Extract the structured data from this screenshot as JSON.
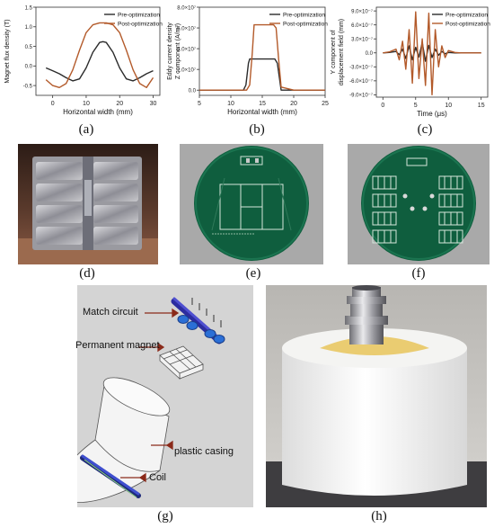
{
  "panels": {
    "a": {
      "caption": "(a)"
    },
    "b": {
      "caption": "(b)"
    },
    "c": {
      "caption": "(c)"
    },
    "d": {
      "caption": "(d)"
    },
    "e": {
      "caption": "(e)"
    },
    "f": {
      "caption": "(f)"
    },
    "g": {
      "caption": "(g)"
    },
    "h": {
      "caption": "(h)"
    }
  },
  "colors": {
    "pre": "#2b2b2b",
    "post": "#b35a2a"
  },
  "chart_data": [
    {
      "type": "line",
      "xlabel": "Horizontal width (mm)",
      "ylabel": "Magnet flux density (T)",
      "xlim": [
        -5,
        32
      ],
      "ylim": [
        -0.75,
        1.5
      ],
      "xticks": [
        "0",
        "10",
        "20",
        "30"
      ],
      "yticks": [
        "-0.5",
        "0.0",
        "0.5",
        "1.0",
        "1.5"
      ],
      "series": [
        {
          "name": "Pre-optimization",
          "x": [
            -2,
            0,
            2,
            4,
            6,
            8,
            10,
            12,
            14,
            15,
            16,
            18,
            20,
            22,
            24,
            26,
            28,
            30
          ],
          "values": [
            -0.05,
            -0.12,
            -0.2,
            -0.3,
            -0.38,
            -0.33,
            -0.05,
            0.35,
            0.6,
            0.62,
            0.6,
            0.35,
            -0.05,
            -0.33,
            -0.38,
            -0.3,
            -0.2,
            -0.12
          ]
        },
        {
          "name": "Post-optimization",
          "x": [
            -2,
            0,
            2,
            4,
            6,
            8,
            10,
            12,
            14,
            15,
            16,
            18,
            20,
            22,
            24,
            26,
            28,
            30
          ],
          "values": [
            -0.35,
            -0.5,
            -0.55,
            -0.45,
            -0.1,
            0.4,
            0.85,
            1.05,
            1.1,
            1.1,
            1.1,
            1.05,
            0.85,
            0.4,
            -0.1,
            -0.45,
            -0.55,
            -0.3
          ]
        }
      ]
    },
    {
      "type": "line",
      "xlabel": "Horizontal width (mm)",
      "ylabel": "Eddy current density",
      "ylabel2": "Z component (A/m²)",
      "xlim": [
        5,
        25
      ],
      "ylim": [
        -0.5,
        8.0
      ],
      "xticks": [
        "5",
        "10",
        "15",
        "20",
        "25"
      ],
      "yticks": [
        "0.0",
        "2.0×10⁷",
        "4.0×10⁷",
        "6.0×10⁷",
        "8.0×10⁷"
      ],
      "series": [
        {
          "name": "Pre-optimization",
          "x": [
            5,
            10,
            12,
            12.4,
            12.8,
            13,
            16,
            16.6,
            17,
            17.4,
            18,
            20,
            25
          ],
          "values": [
            0,
            0,
            0,
            0.5,
            2.6,
            3.0,
            3.0,
            3.0,
            3.0,
            2.6,
            0,
            0,
            0
          ]
        },
        {
          "name": "Post-optimization",
          "x": [
            5,
            10,
            12.5,
            13,
            13.4,
            13.7,
            16,
            16.8,
            17.2,
            17.6,
            18,
            20,
            25
          ],
          "values": [
            0,
            0,
            0,
            0.5,
            3.5,
            6.3,
            6.3,
            6.3,
            6.0,
            3.0,
            0.3,
            0,
            0
          ]
        }
      ]
    },
    {
      "type": "line",
      "xlabel": "Time (μs)",
      "ylabel": "Y component of",
      "ylabel2": "displacement field (mm)",
      "xlim": [
        -1,
        16
      ],
      "ylim": [
        -9.5,
        9.8
      ],
      "xticks": [
        "0",
        "5",
        "10",
        "15"
      ],
      "yticks": [
        "-9.0×10⁻⁷",
        "-6.0×10⁻⁷",
        "-3.0×10⁻⁷",
        "0.0",
        "3.0×10⁻⁷",
        "6.0×10⁻⁷",
        "9.0×10⁻⁷"
      ],
      "series": [
        {
          "name": "Pre-optimization",
          "x": [
            0,
            1,
            2,
            2.5,
            3,
            3.5,
            4,
            4.5,
            5,
            5.5,
            6,
            6.5,
            7,
            7.5,
            8,
            8.5,
            9,
            9.5,
            10,
            11,
            12,
            13,
            14,
            15
          ],
          "values": [
            0,
            0.1,
            0.3,
            -0.4,
            0.8,
            -1.2,
            1.5,
            -1.5,
            1.2,
            -0.9,
            2.2,
            -1.8,
            1.6,
            -1.0,
            0.8,
            -0.5,
            0.3,
            -0.2,
            0.1,
            0,
            0,
            0,
            0,
            0
          ]
        },
        {
          "name": "Post-optimization",
          "x": [
            0,
            1,
            2,
            2.5,
            3,
            3.5,
            4,
            4.5,
            5,
            5.5,
            6,
            6.5,
            7,
            7.5,
            8,
            8.5,
            9,
            9.5,
            10,
            11,
            12,
            13,
            14,
            15
          ],
          "values": [
            0,
            0.2,
            0.8,
            -1.5,
            2.5,
            -3.5,
            5.0,
            -6.5,
            8.8,
            -5.5,
            3.0,
            -7.0,
            8.5,
            -9.0,
            5.0,
            -3.0,
            1.5,
            -1.0,
            0.5,
            0.1,
            0,
            0,
            0,
            0
          ]
        }
      ]
    }
  ],
  "diagram": {
    "labels": [
      "Match circuit",
      "Permanent magnet",
      "plastic casing",
      "Coil"
    ]
  }
}
